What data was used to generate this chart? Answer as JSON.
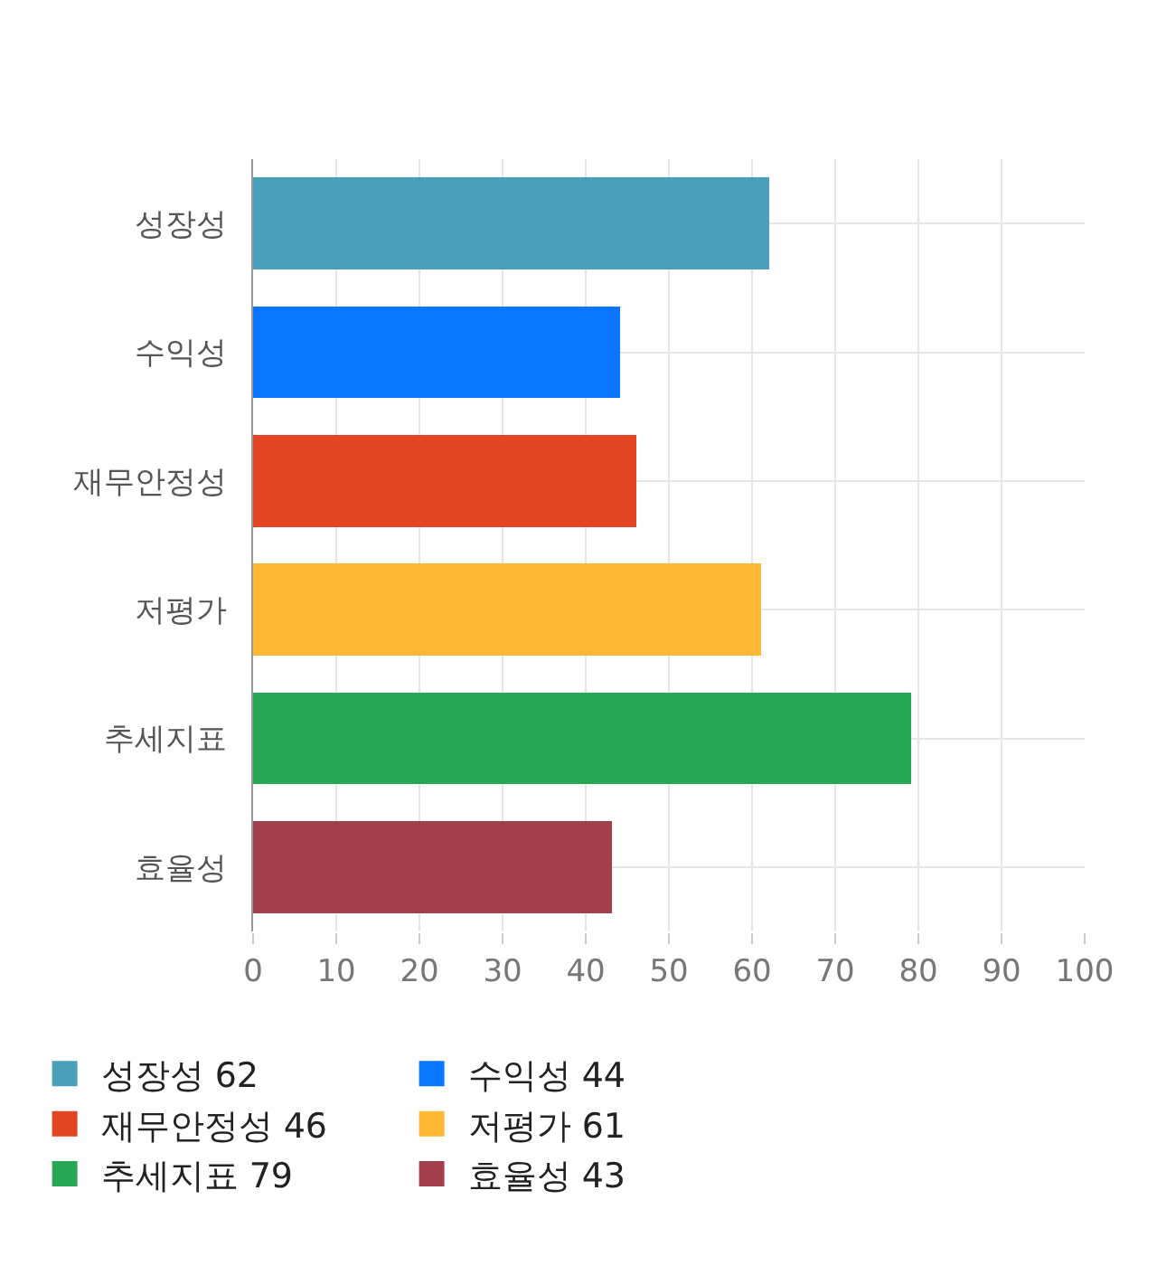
{
  "chart_data": {
    "type": "bar",
    "orientation": "horizontal",
    "stacked": true,
    "categories": [
      "성장성",
      "수익성",
      "재무안정성",
      "저평가",
      "추세지표",
      "효율성"
    ],
    "series": [
      {
        "name": "성장성 62",
        "color": "#4aa0b8",
        "values": [
          62,
          null,
          null,
          null,
          null,
          null
        ]
      },
      {
        "name": "수익성 44",
        "color": "#0a76ff",
        "values": [
          null,
          44,
          null,
          null,
          null,
          null
        ]
      },
      {
        "name": "재무안정성 46",
        "color": "#e34424",
        "values": [
          null,
          null,
          46,
          null,
          null,
          null
        ]
      },
      {
        "name": "저평가 61",
        "color": "#ffb833",
        "values": [
          null,
          null,
          null,
          61,
          null,
          null
        ]
      },
      {
        "name": "추세지표 79",
        "color": "#27a655",
        "values": [
          null,
          null,
          null,
          null,
          79,
          null
        ]
      },
      {
        "name": "효율성 43",
        "color": "#a4404e",
        "values": [
          null,
          null,
          null,
          null,
          null,
          43
        ]
      }
    ],
    "xlim": [
      0,
      100
    ],
    "xticks": [
      0,
      10,
      20,
      30,
      40,
      50,
      60,
      70,
      80,
      90,
      100
    ],
    "grid": true,
    "legend": "bottom"
  }
}
